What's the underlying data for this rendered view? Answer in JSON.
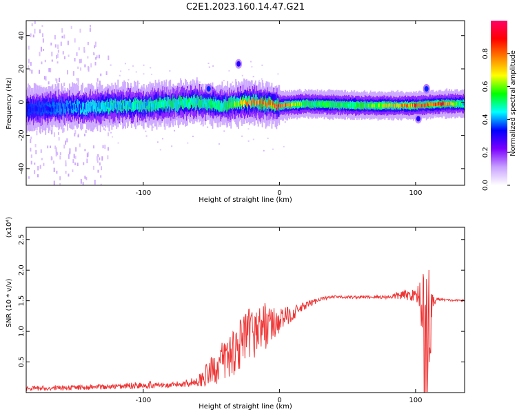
{
  "title": "C2E1.2023.160.14.47.G21",
  "chart_data": [
    {
      "type": "heatmap",
      "xlabel": "Height of straight line (km)",
      "ylabel": "Frequency (Hz)",
      "xlim": [
        -186,
        136
      ],
      "ylim": [
        -50,
        49
      ],
      "xticks": [
        -100,
        0,
        100
      ],
      "yticks": [
        -40,
        -20,
        0,
        20,
        40
      ],
      "colorbar": {
        "label": "Normalized spectral amplitude",
        "range": [
          0,
          1
        ],
        "ticks": [
          "0.0",
          "0.2",
          "0.4",
          "0.6",
          "0.8"
        ],
        "tick_values": [
          0,
          0.2,
          0.4,
          0.6,
          0.8
        ],
        "colors": [
          "#ffffff",
          "#c8a0ff",
          "#7b00ff",
          "#0000ff",
          "#00ffff",
          "#00ff00",
          "#ffff00",
          "#ff8000",
          "#ff0000",
          "#ff0066"
        ]
      },
      "ridge": [
        {
          "x": -185,
          "freq": -4,
          "amp": 0.35
        },
        {
          "x": -160,
          "freq": -3,
          "amp": 0.4
        },
        {
          "x": -140,
          "freq": -3,
          "amp": 0.45
        },
        {
          "x": -120,
          "freq": -2,
          "amp": 0.5
        },
        {
          "x": -100,
          "freq": -2,
          "amp": 0.5
        },
        {
          "x": -80,
          "freq": -1,
          "amp": 0.55
        },
        {
          "x": -60,
          "freq": 0,
          "amp": 0.55
        },
        {
          "x": -40,
          "freq": -2,
          "amp": 0.55
        },
        {
          "x": -25,
          "freq": 0,
          "amp": 0.85
        },
        {
          "x": -10,
          "freq": -1,
          "amp": 0.9
        },
        {
          "x": 0,
          "freq": -2,
          "amp": 0.95
        },
        {
          "x": 20,
          "freq": -1,
          "amp": 0.6
        },
        {
          "x": 60,
          "freq": -2,
          "amp": 0.6
        },
        {
          "x": 80,
          "freq": -2,
          "amp": 0.75
        },
        {
          "x": 100,
          "freq": -2,
          "amp": 0.9
        },
        {
          "x": 120,
          "freq": -1,
          "amp": 0.95
        },
        {
          "x": 135,
          "freq": -1,
          "amp": 0.5
        }
      ],
      "blobs": [
        {
          "x": -52,
          "freq": 8,
          "amp": 0.35
        },
        {
          "x": -30,
          "freq": 23,
          "amp": 0.3
        },
        {
          "x": 108,
          "freq": 8,
          "amp": 0.35
        },
        {
          "x": 102,
          "freq": -10,
          "amp": 0.3
        }
      ]
    },
    {
      "type": "line",
      "xlabel": "Height of straight line (km)",
      "ylabel": "SNR (10 * v/v)",
      "y_multiplier": "(x10⁴)",
      "xlim": [
        -186,
        136
      ],
      "ylim": [
        0,
        2.7
      ],
      "xticks": [
        -100,
        0,
        100
      ],
      "yticks": [
        0.5,
        1.0,
        1.5,
        2.0,
        2.5
      ],
      "ytick_labels": [
        "0.5",
        "1.0",
        "1.5",
        "2.0",
        "2.5"
      ],
      "color": "#ee3333",
      "envelope": {
        "x": [
          -186,
          -120,
          -100,
          -80,
          -60,
          -50,
          -40,
          -30,
          -20,
          -10,
          -5,
          0,
          10,
          20,
          30,
          40,
          60,
          80,
          90,
          100,
          104,
          106,
          108,
          110,
          112,
          116,
          125,
          136
        ],
        "base": [
          0.05,
          0.08,
          0.1,
          0.1,
          0.15,
          0.25,
          0.4,
          0.6,
          0.8,
          0.95,
          1.0,
          1.1,
          1.25,
          1.4,
          1.52,
          1.55,
          1.55,
          1.55,
          1.56,
          1.55,
          1.5,
          1.0,
          0.8,
          0.9,
          1.4,
          1.52,
          1.5,
          1.5
        ],
        "noise": [
          0.05,
          0.05,
          0.08,
          0.05,
          0.1,
          0.3,
          0.45,
          0.55,
          0.55,
          0.5,
          0.35,
          0.25,
          0.15,
          0.08,
          0.04,
          0.03,
          0.03,
          0.04,
          0.1,
          0.12,
          0.4,
          1.0,
          1.2,
          1.0,
          0.2,
          0.03,
          0.02,
          0.02
        ]
      }
    }
  ]
}
